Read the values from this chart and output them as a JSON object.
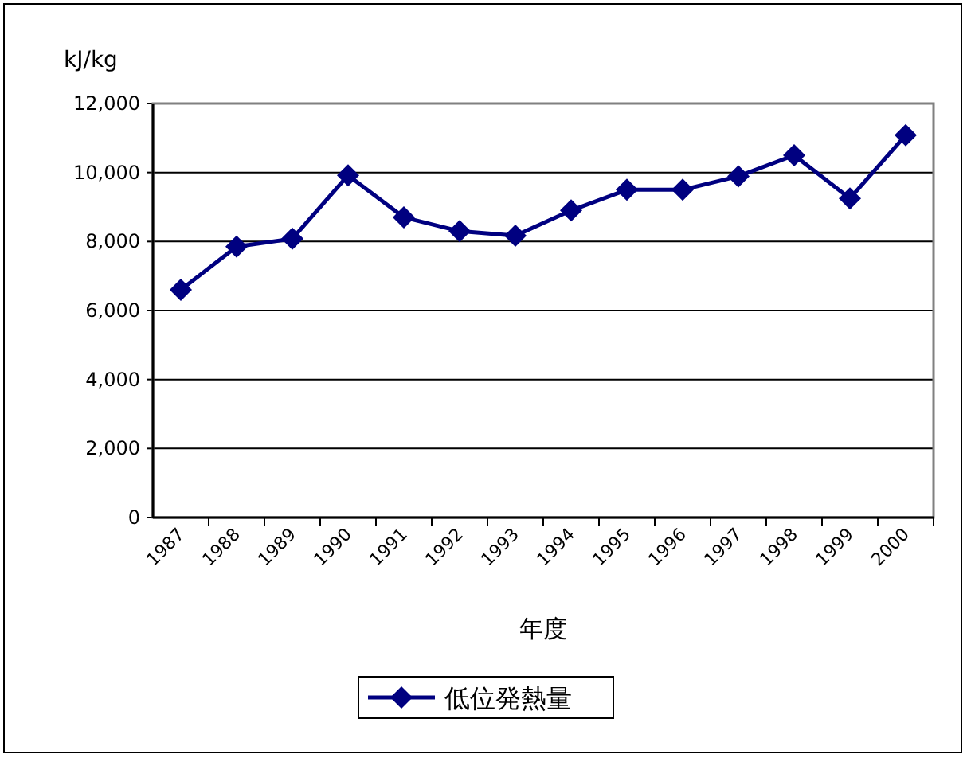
{
  "chart_data": {
    "type": "line",
    "ylabel": "kJ/kg",
    "xlabel": "年度",
    "categories": [
      "1987",
      "1988",
      "1989",
      "1990",
      "1991",
      "1992",
      "1993",
      "1994",
      "1995",
      "1996",
      "1997",
      "1998",
      "1999",
      "2000"
    ],
    "series": [
      {
        "name": "低位発熱量",
        "color": "#000080",
        "values": [
          6600,
          7850,
          8080,
          9920,
          8700,
          8300,
          8170,
          8900,
          9500,
          9500,
          9890,
          10500,
          9250,
          11080
        ]
      }
    ],
    "ylim": [
      0,
      12000
    ],
    "yticks": [
      {
        "value": 0,
        "label": "0"
      },
      {
        "value": 2000,
        "label": "2,000"
      },
      {
        "value": 4000,
        "label": "4,000"
      },
      {
        "value": 6000,
        "label": "6,000"
      },
      {
        "value": 8000,
        "label": "8,000"
      },
      {
        "value": 10000,
        "label": "10,000"
      },
      {
        "value": 12000,
        "label": "12,000"
      }
    ],
    "grid": "y",
    "legend": "bottom",
    "marker": "diamond",
    "line_style": "solid"
  }
}
